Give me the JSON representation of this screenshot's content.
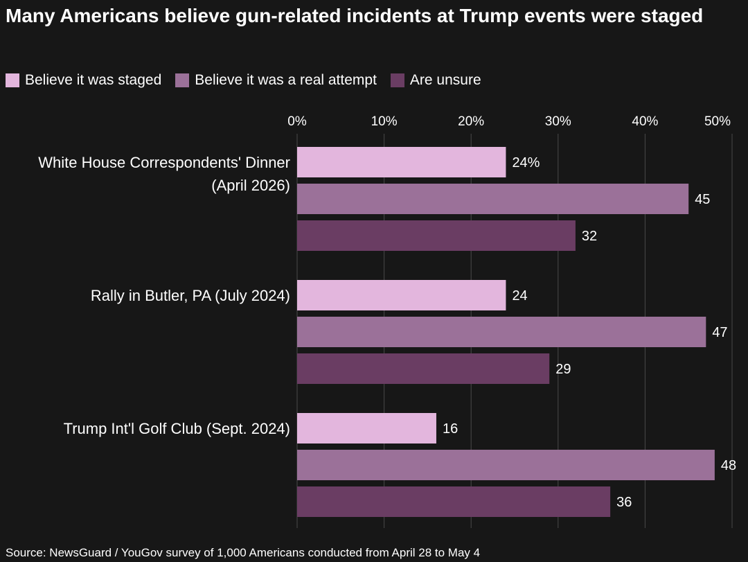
{
  "title": "Many Americans believe gun-related incidents at Trump events were staged",
  "source": "Source: NewsGuard / YouGov survey of 1,000 Americans conducted from April 28 to May 4",
  "colors": {
    "background": "#171717",
    "text": "#ffffff",
    "grid": "#4a4a4a",
    "staged": "#e3b6dd",
    "real_attempt": "#9b7199",
    "unsure": "#6a3d63"
  },
  "chart_data": {
    "type": "bar",
    "orientation": "horizontal",
    "categories": [
      "White House Correspondents' Dinner (April 2026)",
      "Rally in Butler, PA (July 2024)",
      "Trump Int'l Golf Club (Sept. 2024)"
    ],
    "series": [
      {
        "name": "Believe it was staged",
        "values": [
          24,
          24,
          16
        ],
        "labels": [
          "24%",
          "24",
          "16"
        ]
      },
      {
        "name": "Believe it was a real attempt",
        "values": [
          45,
          47,
          48
        ],
        "labels": [
          "45",
          "47",
          "48"
        ]
      },
      {
        "name": "Are unsure",
        "values": [
          32,
          29,
          36
        ],
        "labels": [
          "32",
          "29",
          "36"
        ]
      }
    ],
    "x_ticks": [
      0,
      10,
      20,
      30,
      40,
      50
    ],
    "x_tick_labels": [
      "0%",
      "10%",
      "20%",
      "30%",
      "40%",
      "50%"
    ],
    "xlim": [
      0,
      50
    ],
    "grid": true,
    "legend_position": "top-left",
    "axis_position": "top"
  }
}
